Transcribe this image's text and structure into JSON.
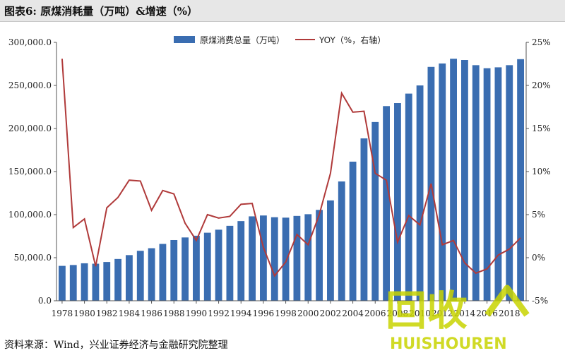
{
  "figure": {
    "title": "图表6:  原煤消耗量（万吨）&增速（%）",
    "source": "资料来源：Wind，兴业证券经济与金融研究院整理"
  },
  "watermark": {
    "main_text": "回收",
    "sub_text": "HUISHOUREN",
    "color": "#c8d400"
  },
  "colors": {
    "bar": "#3a6db1",
    "line": "#b03a3a",
    "axis": "#555555"
  },
  "chart_data": {
    "type": "bar",
    "x": [
      1978,
      1979,
      1980,
      1981,
      1982,
      1983,
      1984,
      1985,
      1986,
      1987,
      1988,
      1989,
      1990,
      1991,
      1992,
      1993,
      1994,
      1995,
      1996,
      1997,
      1998,
      1999,
      2000,
      2001,
      2002,
      2003,
      2004,
      2005,
      2006,
      2007,
      2008,
      2009,
      2010,
      2011,
      2012,
      2013,
      2014,
      2015,
      2016,
      2017,
      2018,
      2019
    ],
    "x_tick_labels": [
      "1978",
      "1980",
      "1982",
      "1984",
      "1986",
      "1988",
      "1990",
      "1992",
      "1994",
      "1996",
      "1998",
      "2000",
      "2002",
      "2004",
      "2006",
      "2008",
      "2010",
      "2012",
      "2014",
      "2016",
      "2018"
    ],
    "series": [
      {
        "name": "原煤消费总量（万吨）",
        "type": "bar",
        "axis": "left",
        "values": [
          40500,
          41500,
          43500,
          43000,
          45000,
          48500,
          53000,
          58000,
          61000,
          66000,
          70500,
          73500,
          75500,
          79000,
          82500,
          87000,
          92500,
          98000,
          99000,
          97000,
          96500,
          98500,
          100500,
          105500,
          116500,
          138500,
          161500,
          188500,
          207500,
          226000,
          229500,
          240500,
          250000,
          271500,
          275500,
          281000,
          279500,
          273500,
          270000,
          271000,
          273500,
          280500
        ]
      },
      {
        "name": "YOY（%，右轴）",
        "type": "line",
        "axis": "right",
        "values": [
          23.1,
          3.5,
          4.5,
          -1.0,
          5.8,
          7.0,
          9.0,
          8.9,
          5.5,
          7.8,
          7.4,
          4.0,
          2.0,
          5.0,
          4.6,
          4.8,
          6.2,
          6.3,
          1.2,
          -2.1,
          -0.5,
          2.7,
          1.5,
          5.0,
          9.8,
          19.1,
          16.9,
          17.0,
          9.8,
          9.0,
          1.8,
          4.9,
          3.8,
          8.6,
          1.5,
          2.0,
          -0.6,
          -1.8,
          -1.3,
          0.3,
          1.0,
          2.3
        ]
      }
    ],
    "y_left": {
      "range": [
        0,
        300000
      ],
      "ticks": [
        "0.0",
        "50,000.0",
        "100,000.0",
        "150,000.0",
        "200,000.0",
        "250,000.0",
        "300,000.0"
      ]
    },
    "y_right": {
      "range": [
        -5,
        25
      ],
      "ticks": [
        "-5%",
        "0%",
        "5%",
        "10%",
        "15%",
        "20%",
        "25%"
      ]
    },
    "grid": false,
    "legend_position": "top-center"
  }
}
